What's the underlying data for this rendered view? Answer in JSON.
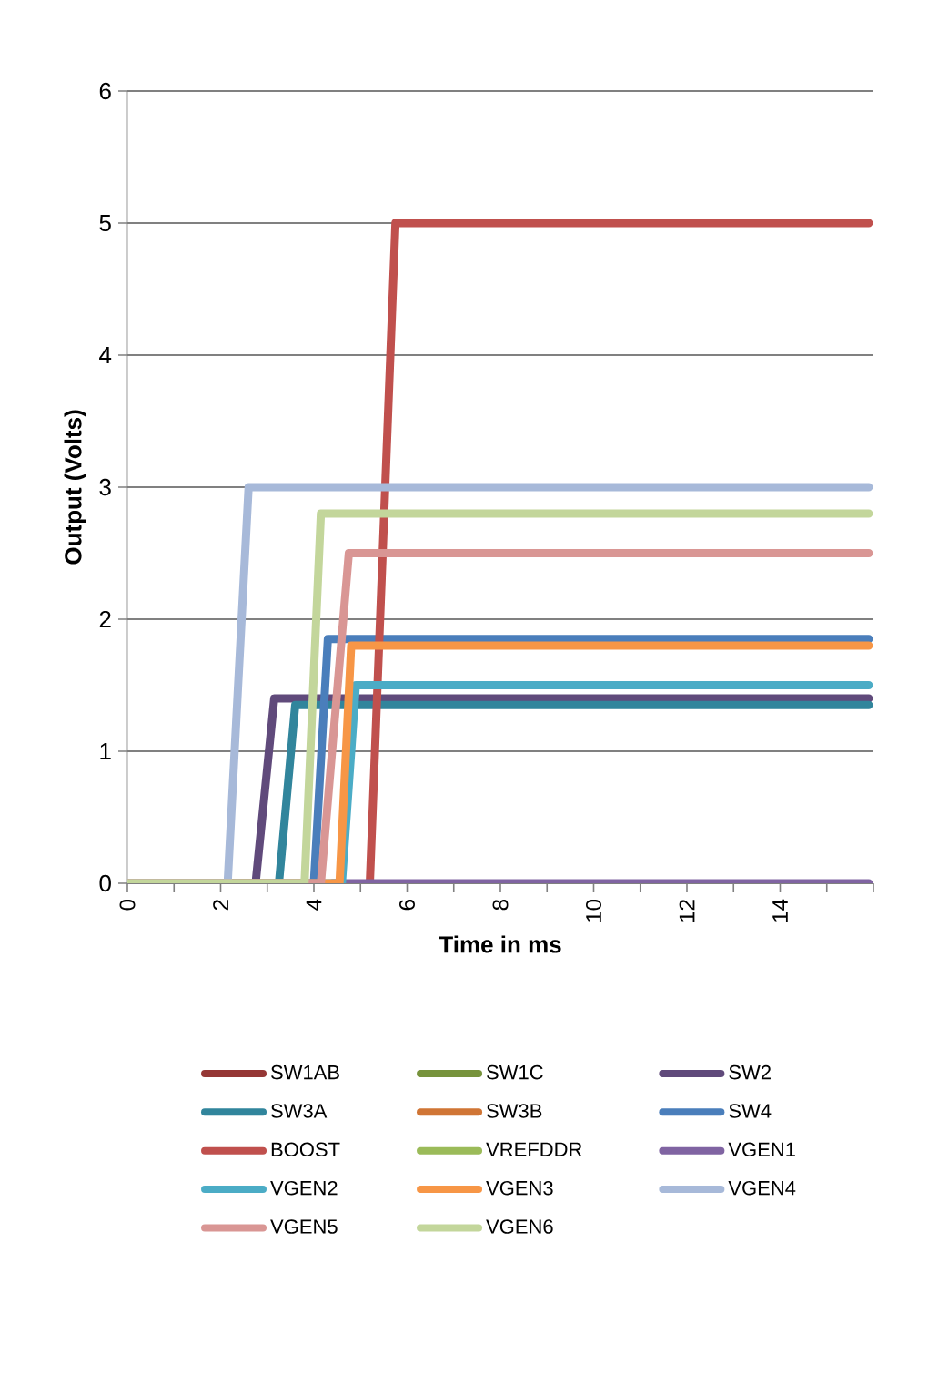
{
  "chart_data": {
    "type": "line",
    "xlabel": "Time in ms",
    "ylabel": "Output (Volts)",
    "xlim": [
      0,
      16
    ],
    "ylim": [
      0,
      6
    ],
    "xticks": [
      0,
      {
        "value": 1,
        "label": null
      },
      2,
      {
        "value": 3,
        "label": null
      },
      4,
      {
        "value": 5,
        "label": null
      },
      6,
      {
        "value": 7,
        "label": null
      },
      8,
      {
        "value": 9,
        "label": null
      },
      10,
      {
        "value": 11,
        "label": null
      },
      12,
      {
        "value": 13,
        "label": null
      },
      14,
      {
        "value": 15,
        "label": null
      },
      {
        "value": 16,
        "label": null
      }
    ],
    "yticks": [
      0,
      1,
      2,
      3,
      4,
      5,
      6
    ],
    "grid": "y",
    "legend": "bottom",
    "marker": "none",
    "line_style": "solid",
    "series": [
      {
        "name": "SW1AB",
        "color": "#953735"
      },
      {
        "name": "SW1C",
        "color": "#77933c"
      },
      {
        "name": "SW2",
        "color": "#604a7b",
        "x": [
          0,
          2.75,
          3.15,
          15.9
        ],
        "values": [
          0,
          0,
          1.4,
          1.4
        ]
      },
      {
        "name": "SW3A",
        "color": "#31859c",
        "x": [
          0,
          3.25,
          3.6,
          15.9
        ],
        "values": [
          0,
          0,
          1.35,
          1.35
        ]
      },
      {
        "name": "SW3B",
        "color": "#d07535"
      },
      {
        "name": "SW4",
        "color": "#4a7ebb",
        "x": [
          0,
          4.0,
          4.3,
          15.9
        ],
        "values": [
          0,
          0,
          1.85,
          1.85
        ]
      },
      {
        "name": "BOOST",
        "color": "#c0504d",
        "x": [
          5.2,
          5.75,
          15.9
        ],
        "values": [
          0,
          5,
          5
        ]
      },
      {
        "name": "VREFDDR",
        "color": "#9bbb59"
      },
      {
        "name": "VGEN1",
        "color": "#8064a2",
        "x": [
          4.4,
          15.9
        ],
        "values": [
          0,
          0
        ]
      },
      {
        "name": "VGEN2",
        "color": "#4bacc6",
        "x": [
          0,
          4.6,
          4.9,
          15.9
        ],
        "values": [
          0,
          0,
          1.5,
          1.5
        ]
      },
      {
        "name": "VGEN3",
        "color": "#f79646",
        "x": [
          0,
          4.55,
          4.8,
          15.9
        ],
        "values": [
          0,
          0,
          1.8,
          1.8
        ]
      },
      {
        "name": "VGEN4",
        "color": "#a7b9d9",
        "x": [
          0,
          2.15,
          2.6,
          15.9
        ],
        "values": [
          0,
          0,
          3.0,
          3.0
        ]
      },
      {
        "name": "VGEN5",
        "color": "#d99694",
        "x": [
          0,
          4.15,
          4.75,
          15.9
        ],
        "values": [
          0,
          0,
          2.5,
          2.5
        ]
      },
      {
        "name": "VGEN6",
        "color": "#c3d69b",
        "x": [
          0,
          3.8,
          4.15,
          15.9
        ],
        "values": [
          0,
          0,
          2.8,
          2.8
        ]
      }
    ]
  }
}
